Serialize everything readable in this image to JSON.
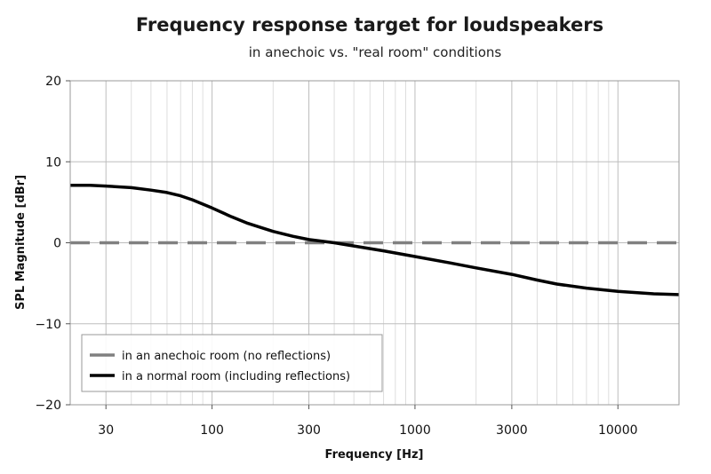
{
  "chart_data": {
    "type": "line",
    "title": "Frequency response target for loudspeakers",
    "subtitle": "in anechoic vs. \"real room\" conditions",
    "xlabel": "Frequency [Hz]",
    "ylabel": "SPL Magnitude [dBr]",
    "x_scale": "log",
    "xlim": [
      20,
      20000
    ],
    "ylim": [
      -20,
      20
    ],
    "x_ticks": [
      30,
      100,
      300,
      1000,
      3000,
      10000
    ],
    "x_tick_labels": [
      "30",
      "100",
      "300",
      "1000",
      "3000",
      "10000"
    ],
    "y_ticks": [
      20,
      10,
      0,
      -10,
      -20
    ],
    "y_tick_labels": [
      "20",
      "10",
      "0",
      "−10",
      "−20"
    ],
    "grid": true,
    "legend_position": "bottom-left",
    "series": [
      {
        "name": "in an anechoic room (no reflections)",
        "color": "#808080",
        "style": "dashed",
        "x": [
          20,
          20000
        ],
        "y": [
          0,
          0
        ]
      },
      {
        "name": "in a normal room (including reflections)",
        "color": "#000000",
        "style": "solid",
        "x": [
          20,
          25,
          30,
          40,
          50,
          60,
          70,
          80,
          100,
          125,
          150,
          200,
          250,
          300,
          400,
          500,
          700,
          1000,
          1500,
          2000,
          3000,
          4000,
          5000,
          7000,
          10000,
          15000,
          20000
        ],
        "y": [
          7.1,
          7.1,
          7.0,
          6.8,
          6.5,
          6.2,
          5.8,
          5.3,
          4.3,
          3.2,
          2.4,
          1.4,
          0.8,
          0.4,
          0,
          -0.4,
          -1.0,
          -1.7,
          -2.5,
          -3.1,
          -3.9,
          -4.6,
          -5.1,
          -5.6,
          -6.0,
          -6.3,
          -6.4
        ]
      }
    ]
  }
}
